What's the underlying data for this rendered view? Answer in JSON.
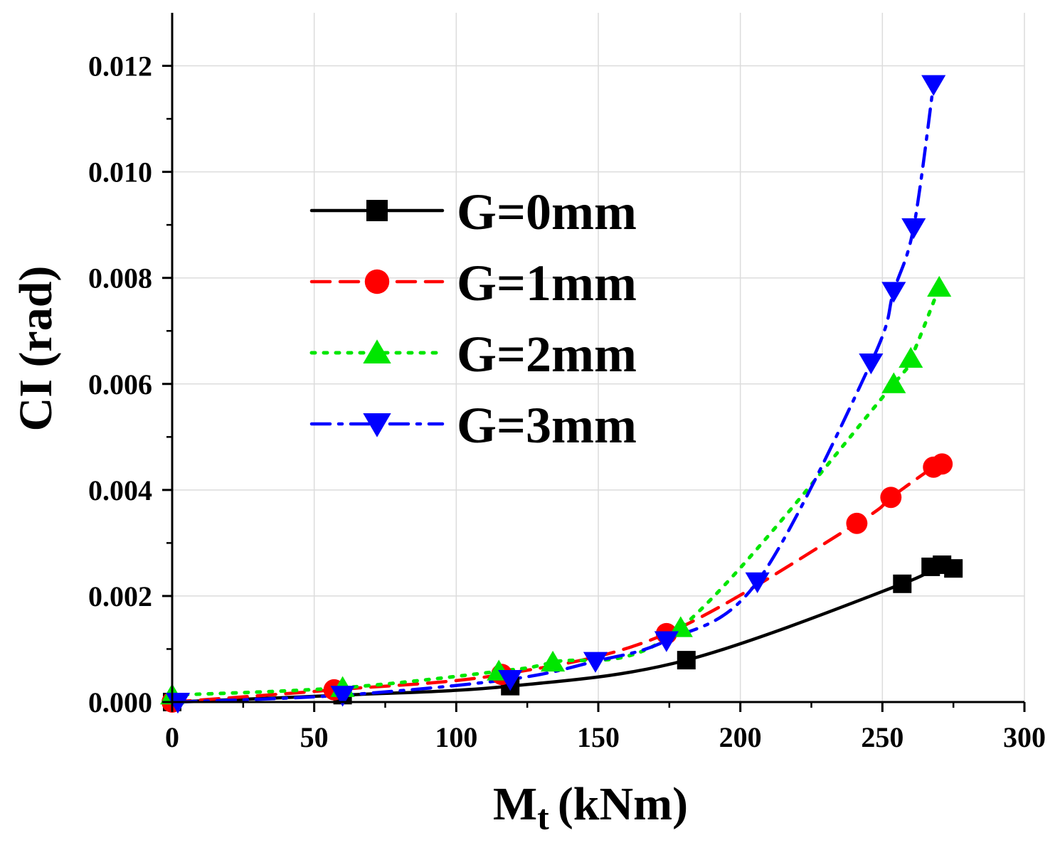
{
  "chart_data": {
    "type": "line",
    "xlabel": "M",
    "xlabel_sub": "t",
    "xlabel_unit": "(kNm)",
    "ylabel": "CI (rad)",
    "xlim": [
      0,
      300
    ],
    "ylim": [
      0,
      0.013
    ],
    "xticks": [
      0,
      50,
      100,
      150,
      200,
      250,
      300
    ],
    "xtick_labels": [
      "0",
      "50",
      "100",
      "150",
      "200",
      "250",
      "300"
    ],
    "yticks": [
      0,
      0.002,
      0.004,
      0.006,
      0.008,
      0.01,
      0.012
    ],
    "ytick_labels": [
      "0.000",
      "0.002",
      "0.004",
      "0.006",
      "0.008",
      "0.010",
      "0.012"
    ],
    "grid": true,
    "legend_position": "upper-left",
    "series": [
      {
        "name": "G=0mm",
        "color": "#000000",
        "line_style": "solid",
        "marker": "square",
        "x": [
          0,
          60,
          119,
          181,
          257,
          267,
          271,
          275
        ],
        "y": [
          0.0,
          0.00013,
          0.0003,
          0.00079,
          0.00223,
          0.00255,
          0.00259,
          0.00252
        ]
      },
      {
        "name": "G=1mm",
        "color": "#ff0000",
        "line_style": "dash",
        "marker": "circle",
        "x": [
          0,
          57,
          116,
          174,
          241,
          253,
          268,
          271
        ],
        "y": [
          0.0,
          0.00023,
          0.00052,
          0.00129,
          0.00337,
          0.00386,
          0.00443,
          0.00449
        ]
      },
      {
        "name": "G=2mm",
        "color": "#00e600",
        "line_style": "dot",
        "marker": "triangle-up",
        "x": [
          0,
          60,
          115,
          134,
          179,
          254,
          260,
          270
        ],
        "y": [
          0.00013,
          0.00027,
          0.00058,
          0.00075,
          0.0014,
          0.006,
          0.00648,
          0.00782
        ]
      },
      {
        "name": "G=3mm",
        "color": "#0000ff",
        "line_style": "dash-dot",
        "marker": "triangle-down",
        "x": [
          2,
          60,
          119,
          149,
          174,
          206,
          246,
          254,
          261,
          268
        ],
        "y": [
          0.0,
          0.00013,
          0.00043,
          0.00077,
          0.00116,
          0.00227,
          0.0064,
          0.00775,
          0.00895,
          0.01165
        ]
      }
    ]
  }
}
